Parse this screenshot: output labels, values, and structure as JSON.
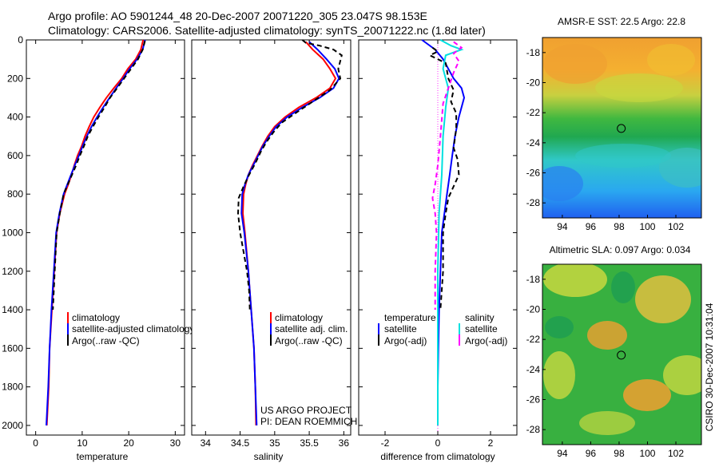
{
  "title": {
    "line1": "Argo profile: AO 5901244_48 20-Dec-2007 20071220_305 23.047S 98.153E",
    "line2": "Climatology: CARS2006. Satellite-adjusted climatology: synTS_20071222.nc (1.8d later)"
  },
  "side_label": "CSIRO 30-Dec-2007 10:31:04",
  "colors": {
    "climatology": "#ff0000",
    "satellite": "#0000ff",
    "argo": "#000000",
    "sal_satellite": "#00e0e0",
    "sal_argo": "#ff00ff"
  },
  "chart_data": [
    {
      "type": "line",
      "name": "temperature-panel",
      "xlabel": "temperature",
      "ylabel": "",
      "xlim": [
        -2,
        32
      ],
      "ylim": [
        2050,
        0
      ],
      "xticks": [
        0,
        10,
        20,
        30
      ],
      "yticks": [
        0,
        200,
        400,
        600,
        800,
        1000,
        1200,
        1400,
        1600,
        1800,
        2000
      ],
      "legend": [
        "climatology",
        "satellite-adjusted climatology",
        "Argo(..raw -QC)"
      ],
      "series": [
        {
          "name": "climatology",
          "style": "solid",
          "color": "#ff0000",
          "points": [
            [
              23.1,
              0
            ],
            [
              22.6,
              50
            ],
            [
              21.5,
              100
            ],
            [
              19.8,
              150
            ],
            [
              18.5,
              200
            ],
            [
              16.8,
              250
            ],
            [
              15.2,
              300
            ],
            [
              13.8,
              350
            ],
            [
              12.5,
              400
            ],
            [
              11.5,
              450
            ],
            [
              10.6,
              500
            ],
            [
              9.9,
              550
            ],
            [
              9.0,
              600
            ],
            [
              8.3,
              650
            ],
            [
              7.7,
              700
            ],
            [
              7.0,
              750
            ],
            [
              6.2,
              800
            ],
            [
              5.2,
              900
            ],
            [
              4.5,
              1000
            ],
            [
              4.0,
              1200
            ],
            [
              3.5,
              1400
            ],
            [
              3.0,
              1600
            ],
            [
              2.8,
              1800
            ],
            [
              2.4,
              2000
            ]
          ]
        },
        {
          "name": "satellite-adjusted climatology",
          "style": "solid",
          "color": "#0000ff",
          "points": [
            [
              23.5,
              0
            ],
            [
              23.0,
              50
            ],
            [
              21.8,
              100
            ],
            [
              20.2,
              150
            ],
            [
              18.8,
              200
            ],
            [
              17.3,
              250
            ],
            [
              15.9,
              300
            ],
            [
              14.5,
              350
            ],
            [
              13.2,
              400
            ],
            [
              12.0,
              450
            ],
            [
              11.0,
              500
            ],
            [
              10.1,
              550
            ],
            [
              9.3,
              600
            ],
            [
              8.4,
              650
            ],
            [
              7.6,
              700
            ],
            [
              6.8,
              750
            ],
            [
              6.0,
              800
            ],
            [
              5.1,
              900
            ],
            [
              4.4,
              1000
            ],
            [
              3.9,
              1200
            ],
            [
              3.4,
              1400
            ],
            [
              3.0,
              1600
            ],
            [
              2.7,
              1800
            ],
            [
              2.3,
              2000
            ]
          ]
        },
        {
          "name": "Argo(..raw -QC)",
          "style": "dashed",
          "color": "#000000",
          "points": [
            [
              23.5,
              5
            ],
            [
              23.0,
              50
            ],
            [
              22.0,
              100
            ],
            [
              20.5,
              150
            ],
            [
              19.0,
              200
            ],
            [
              17.5,
              250
            ],
            [
              16.0,
              300
            ],
            [
              14.8,
              350
            ],
            [
              13.5,
              400
            ],
            [
              12.3,
              450
            ],
            [
              11.2,
              500
            ],
            [
              10.4,
              550
            ],
            [
              9.5,
              600
            ],
            [
              8.7,
              650
            ],
            [
              7.8,
              700
            ],
            [
              6.9,
              750
            ],
            [
              6.0,
              800
            ],
            [
              5.2,
              900
            ],
            [
              4.5,
              1000
            ],
            [
              4.1,
              1200
            ],
            [
              3.7,
              1400
            ]
          ]
        }
      ]
    },
    {
      "type": "line",
      "name": "salinity-panel",
      "xlabel": "salinity",
      "ylabel": "",
      "xlim": [
        33.8,
        36.1
      ],
      "ylim": [
        2050,
        0
      ],
      "xticks": [
        34,
        34.5,
        35,
        35.5,
        36
      ],
      "legend": [
        "climatology",
        "satellite adj. clim.",
        "Argo(..raw -QC)"
      ],
      "annotation": [
        "US ARGO PROJECT",
        "PI: DEAN ROEMMICH"
      ],
      "series": [
        {
          "name": "climatology",
          "style": "solid",
          "color": "#ff0000",
          "points": [
            [
              35.45,
              10
            ],
            [
              35.55,
              50
            ],
            [
              35.7,
              100
            ],
            [
              35.8,
              150
            ],
            [
              35.88,
              200
            ],
            [
              35.8,
              250
            ],
            [
              35.6,
              300
            ],
            [
              35.35,
              350
            ],
            [
              35.15,
              400
            ],
            [
              35.0,
              450
            ],
            [
              34.9,
              500
            ],
            [
              34.82,
              550
            ],
            [
              34.75,
              600
            ],
            [
              34.68,
              650
            ],
            [
              34.62,
              700
            ],
            [
              34.58,
              750
            ],
            [
              34.55,
              800
            ],
            [
              34.54,
              900
            ],
            [
              34.57,
              1000
            ],
            [
              34.62,
              1200
            ],
            [
              34.66,
              1400
            ],
            [
              34.7,
              1600
            ],
            [
              34.72,
              1800
            ],
            [
              34.73,
              2000
            ]
          ]
        },
        {
          "name": "satellite adj. clim.",
          "style": "solid",
          "color": "#0000ff",
          "points": [
            [
              35.5,
              10
            ],
            [
              35.62,
              50
            ],
            [
              35.75,
              100
            ],
            [
              35.87,
              150
            ],
            [
              35.93,
              200
            ],
            [
              35.85,
              250
            ],
            [
              35.65,
              300
            ],
            [
              35.4,
              350
            ],
            [
              35.18,
              400
            ],
            [
              35.02,
              450
            ],
            [
              34.92,
              500
            ],
            [
              34.83,
              550
            ],
            [
              34.76,
              600
            ],
            [
              34.69,
              650
            ],
            [
              34.62,
              700
            ],
            [
              34.57,
              750
            ],
            [
              34.53,
              800
            ],
            [
              34.52,
              900
            ],
            [
              34.56,
              1000
            ],
            [
              34.62,
              1200
            ],
            [
              34.66,
              1400
            ],
            [
              34.7,
              1600
            ],
            [
              34.72,
              1800
            ],
            [
              34.74,
              2000
            ]
          ]
        },
        {
          "name": "Argo(..raw -QC)",
          "style": "dashed",
          "color": "#000000",
          "points": [
            [
              35.4,
              0
            ],
            [
              35.45,
              15
            ],
            [
              35.65,
              30
            ],
            [
              35.85,
              50
            ],
            [
              35.97,
              80
            ],
            [
              35.92,
              150
            ],
            [
              35.95,
              200
            ],
            [
              35.8,
              260
            ],
            [
              35.55,
              320
            ],
            [
              35.3,
              380
            ],
            [
              35.1,
              430
            ],
            [
              34.98,
              480
            ],
            [
              34.88,
              530
            ],
            [
              34.8,
              580
            ],
            [
              34.72,
              640
            ],
            [
              34.63,
              700
            ],
            [
              34.55,
              760
            ],
            [
              34.48,
              820
            ],
            [
              34.47,
              900
            ],
            [
              34.5,
              1000
            ],
            [
              34.55,
              1100
            ],
            [
              34.6,
              1200
            ],
            [
              34.63,
              1300
            ],
            [
              34.64,
              1400
            ]
          ]
        }
      ]
    },
    {
      "type": "line",
      "name": "difference-panel",
      "xlabel": "difference from climatology",
      "ylabel": "",
      "xlim": [
        -3.0,
        3.0
      ],
      "ylim": [
        2050,
        0
      ],
      "xticks": [
        -2,
        0,
        2
      ],
      "legend_left_title": "temperature",
      "legend_right_title": "salinity",
      "legend": [
        "satellite",
        "Argo(-adj)",
        "satellite",
        "Argo(-adj)"
      ],
      "series": [
        {
          "name": "temperature satellite",
          "style": "solid",
          "color": "#0000ff",
          "points": [
            [
              -0.6,
              0
            ],
            [
              -0.1,
              50
            ],
            [
              0.2,
              100
            ],
            [
              0.4,
              150
            ],
            [
              0.6,
              200
            ],
            [
              0.9,
              250
            ],
            [
              1.0,
              300
            ],
            [
              0.8,
              400
            ],
            [
              0.65,
              500
            ],
            [
              0.55,
              600
            ],
            [
              0.45,
              700
            ],
            [
              0.35,
              800
            ],
            [
              0.25,
              900
            ],
            [
              0.15,
              1000
            ],
            [
              0.1,
              1200
            ],
            [
              0.05,
              1400
            ],
            [
              0.02,
              1600
            ],
            [
              0.0,
              1800
            ],
            [
              0.0,
              2000
            ]
          ]
        },
        {
          "name": "temperature Argo(-adj)",
          "style": "dashed",
          "color": "#000000",
          "points": [
            [
              -0.2,
              40
            ],
            [
              0.0,
              60
            ],
            [
              -0.3,
              80
            ],
            [
              0.3,
              120
            ],
            [
              0.4,
              200
            ],
            [
              0.6,
              260
            ],
            [
              0.5,
              320
            ],
            [
              0.7,
              380
            ],
            [
              0.7,
              460
            ],
            [
              0.6,
              560
            ],
            [
              0.75,
              620
            ],
            [
              0.8,
              700
            ],
            [
              0.6,
              760
            ],
            [
              0.4,
              820
            ],
            [
              0.3,
              900
            ],
            [
              0.2,
              1000
            ],
            [
              0.2,
              1200
            ],
            [
              0.1,
              1400
            ]
          ]
        },
        {
          "name": "salinity satellite",
          "style": "solid",
          "color": "#00e0e0",
          "points": [
            [
              0.1,
              0
            ],
            [
              0.5,
              30
            ],
            [
              0.9,
              50
            ],
            [
              0.3,
              80
            ],
            [
              0.2,
              150
            ],
            [
              0.4,
              250
            ],
            [
              0.3,
              350
            ],
            [
              0.2,
              500
            ],
            [
              0.15,
              700
            ],
            [
              0.05,
              900
            ],
            [
              0.0,
              1200
            ],
            [
              0.0,
              1600
            ],
            [
              0.0,
              2000
            ]
          ]
        },
        {
          "name": "salinity Argo(-adj)",
          "style": "dashed",
          "color": "#ff00ff",
          "points": [
            [
              0.6,
              10
            ],
            [
              0.9,
              40
            ],
            [
              0.6,
              70
            ],
            [
              0.8,
              110
            ],
            [
              0.6,
              170
            ],
            [
              0.4,
              250
            ],
            [
              0.2,
              330
            ],
            [
              0.1,
              500
            ],
            [
              0.0,
              650
            ],
            [
              -0.1,
              750
            ],
            [
              -0.2,
              820
            ],
            [
              -0.1,
              900
            ],
            [
              -0.05,
              1000
            ],
            [
              -0.1,
              1200
            ],
            [
              -0.1,
              1400
            ]
          ]
        }
      ]
    },
    {
      "type": "heatmap",
      "name": "sst-map",
      "title": "AMSR-E SST: 22.5 Argo: 22.8",
      "xlim": [
        92.6,
        103.8
      ],
      "ylim": [
        -29,
        -17
      ],
      "xticks": [
        94,
        96,
        98,
        100,
        102
      ],
      "yticks": [
        -18,
        -20,
        -22,
        -24,
        -26,
        -28
      ],
      "marker": [
        98.153,
        -23.047
      ]
    },
    {
      "type": "heatmap",
      "name": "sla-map",
      "title": "Altimetric SLA: 0.097 Argo: 0.034",
      "xlim": [
        92.6,
        103.8
      ],
      "ylim": [
        -29,
        -17
      ],
      "xticks": [
        94,
        96,
        98,
        100,
        102
      ],
      "yticks": [
        -18,
        -20,
        -22,
        -24,
        -26,
        -28
      ],
      "marker": [
        98.153,
        -23.047
      ]
    }
  ]
}
